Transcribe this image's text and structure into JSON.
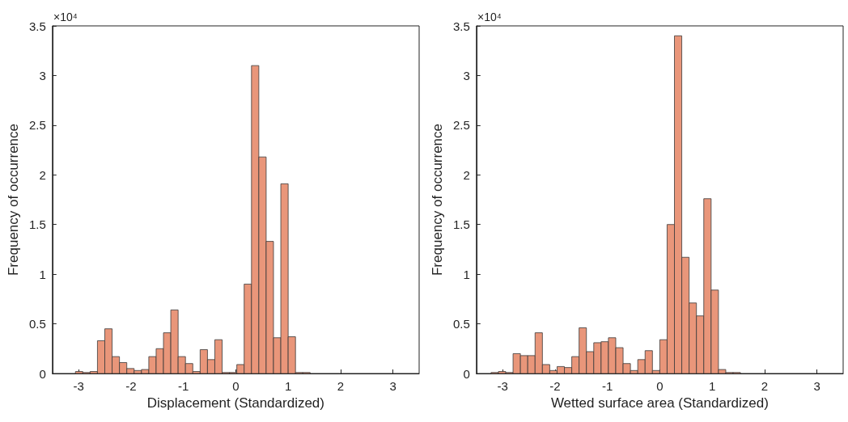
{
  "chart_data": [
    {
      "type": "histogram",
      "xlabel": "Displacement (Standardized)",
      "ylabel": "Frequency of occurrence",
      "annotations": [
        "×10⁴"
      ],
      "color": "#e9967a",
      "bins": [
        -3.06,
        -2.92,
        -2.78,
        -2.64,
        -2.5,
        -2.36,
        -2.22,
        -2.08,
        -1.94,
        -1.8,
        -1.66,
        -1.52,
        -1.38,
        -1.24,
        -1.1,
        -0.96,
        -0.82,
        -0.68,
        -0.54,
        -0.4,
        -0.26,
        -0.12,
        0.02,
        0.16,
        0.3,
        0.44,
        0.58,
        0.72,
        0.86,
        1.0,
        1.14,
        1.28,
        1.42
      ],
      "values": [
        0.02,
        0.01,
        0.02,
        0.33,
        0.45,
        0.17,
        0.11,
        0.05,
        0.03,
        0.04,
        0.17,
        0.25,
        0.41,
        0.64,
        0.17,
        0.1,
        0.02,
        0.24,
        0.14,
        0.34,
        0.01,
        0.01,
        0.09,
        0.9,
        3.1,
        2.18,
        1.33,
        0.36,
        1.91,
        0.37,
        0.01,
        0.01
      ],
      "xlim": [
        -3.5,
        3.5
      ],
      "xticks": [
        -3,
        -2,
        -1,
        0,
        1,
        2,
        3
      ],
      "ylim": [
        0,
        3.5
      ],
      "yticks": [
        0,
        0.5,
        1,
        1.5,
        2,
        2.5,
        3,
        3.5
      ]
    },
    {
      "type": "histogram",
      "xlabel": "Wetted surface area (Standardized)",
      "ylabel": "Frequency of occurrence",
      "annotations": [
        "×10⁴"
      ],
      "color": "#e9967a",
      "bins": [
        -3.22,
        -3.08,
        -2.94,
        -2.8,
        -2.66,
        -2.52,
        -2.38,
        -2.24,
        -2.1,
        -1.96,
        -1.82,
        -1.68,
        -1.54,
        -1.4,
        -1.26,
        -1.12,
        -0.98,
        -0.84,
        -0.7,
        -0.56,
        -0.42,
        -0.28,
        -0.14,
        0.0,
        0.14,
        0.28,
        0.42,
        0.56,
        0.7,
        0.84,
        0.98,
        1.12,
        1.26,
        1.4,
        1.54
      ],
      "values": [
        0.01,
        0.02,
        0.01,
        0.2,
        0.18,
        0.18,
        0.41,
        0.09,
        0.03,
        0.07,
        0.06,
        0.17,
        0.46,
        0.22,
        0.31,
        0.32,
        0.36,
        0.26,
        0.1,
        0.03,
        0.14,
        0.23,
        0.03,
        0.34,
        1.5,
        3.4,
        1.17,
        0.71,
        0.58,
        1.76,
        0.84,
        0.04,
        0.01,
        0.01
      ],
      "xlim": [
        -3.5,
        3.5
      ],
      "xticks": [
        -3,
        -2,
        -1,
        0,
        1,
        2,
        3
      ],
      "ylim": [
        0,
        3.5
      ],
      "yticks": [
        0,
        0.5,
        1,
        1.5,
        2,
        2.5,
        3,
        3.5
      ]
    }
  ]
}
